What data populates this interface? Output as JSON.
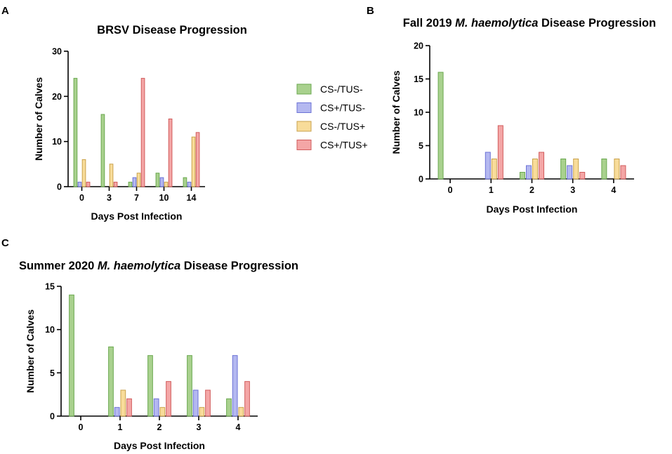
{
  "legend": {
    "items": [
      {
        "label": "CS-/TUS-",
        "color": "#a9d18e",
        "stroke": "#6aa84f"
      },
      {
        "label": "CS+/TUS-",
        "color": "#b4b8f0",
        "stroke": "#6b72d6"
      },
      {
        "label": "CS-/TUS+",
        "color": "#f8dc9a",
        "stroke": "#c9a24c"
      },
      {
        "label": "CS+/TUS+",
        "color": "#f4a6a6",
        "stroke": "#d05c5c"
      }
    ]
  },
  "chart_data": [
    {
      "panel": "A",
      "type": "bar",
      "title": "BRSV Disease Progression",
      "title_prefix": "",
      "title_italic": "",
      "title_suffix": "",
      "xlabel": "Days Post Infection",
      "ylabel": "Number of Calves",
      "categories": [
        "0",
        "3",
        "7",
        "10",
        "14"
      ],
      "ylim": [
        0,
        30
      ],
      "yticks": [
        0,
        10,
        20,
        30
      ],
      "series": [
        {
          "name": "CS-/TUS-",
          "values": [
            24,
            16,
            1,
            3,
            2
          ]
        },
        {
          "name": "CS+/TUS-",
          "values": [
            1,
            0,
            2,
            2,
            1
          ]
        },
        {
          "name": "CS-/TUS+",
          "values": [
            6,
            5,
            3,
            1,
            11
          ]
        },
        {
          "name": "CS+/TUS+",
          "values": [
            1,
            1,
            24,
            15,
            12
          ]
        }
      ]
    },
    {
      "panel": "B",
      "type": "bar",
      "title": "Fall 2019 M. haemolytica Disease Progression",
      "title_prefix": "Fall 2019 ",
      "title_italic": "M. haemolytica",
      "title_suffix": " Disease Progression",
      "xlabel": "Days Post Infection",
      "ylabel": "Number of Calves",
      "categories": [
        "0",
        "1",
        "2",
        "3",
        "4"
      ],
      "ylim": [
        0,
        20
      ],
      "yticks": [
        0,
        5,
        10,
        15,
        20
      ],
      "series": [
        {
          "name": "CS-/TUS-",
          "values": [
            16,
            0,
            1,
            3,
            3
          ]
        },
        {
          "name": "CS+/TUS-",
          "values": [
            0,
            4,
            2,
            2,
            0
          ]
        },
        {
          "name": "CS-/TUS+",
          "values": [
            0,
            3,
            3,
            3,
            3
          ]
        },
        {
          "name": "CS+/TUS+",
          "values": [
            0,
            8,
            4,
            1,
            2
          ]
        }
      ]
    },
    {
      "panel": "C",
      "type": "bar",
      "title": "Summer 2020 M. haemolytica Disease Progression",
      "title_prefix": "Summer 2020 ",
      "title_italic": "M. haemolytica",
      "title_suffix": " Disease Progression",
      "xlabel": "Days Post Infection",
      "ylabel": "Number of Calves",
      "categories": [
        "0",
        "1",
        "2",
        "3",
        "4"
      ],
      "ylim": [
        0,
        15
      ],
      "yticks": [
        0,
        5,
        10,
        15
      ],
      "series": [
        {
          "name": "CS-/TUS-",
          "values": [
            14,
            8,
            7,
            7,
            2
          ]
        },
        {
          "name": "CS+/TUS-",
          "values": [
            0,
            1,
            2,
            3,
            7
          ]
        },
        {
          "name": "CS-/TUS+",
          "values": [
            0,
            3,
            1,
            1,
            1
          ]
        },
        {
          "name": "CS+/TUS+",
          "values": [
            0,
            2,
            4,
            3,
            4
          ]
        }
      ]
    }
  ]
}
